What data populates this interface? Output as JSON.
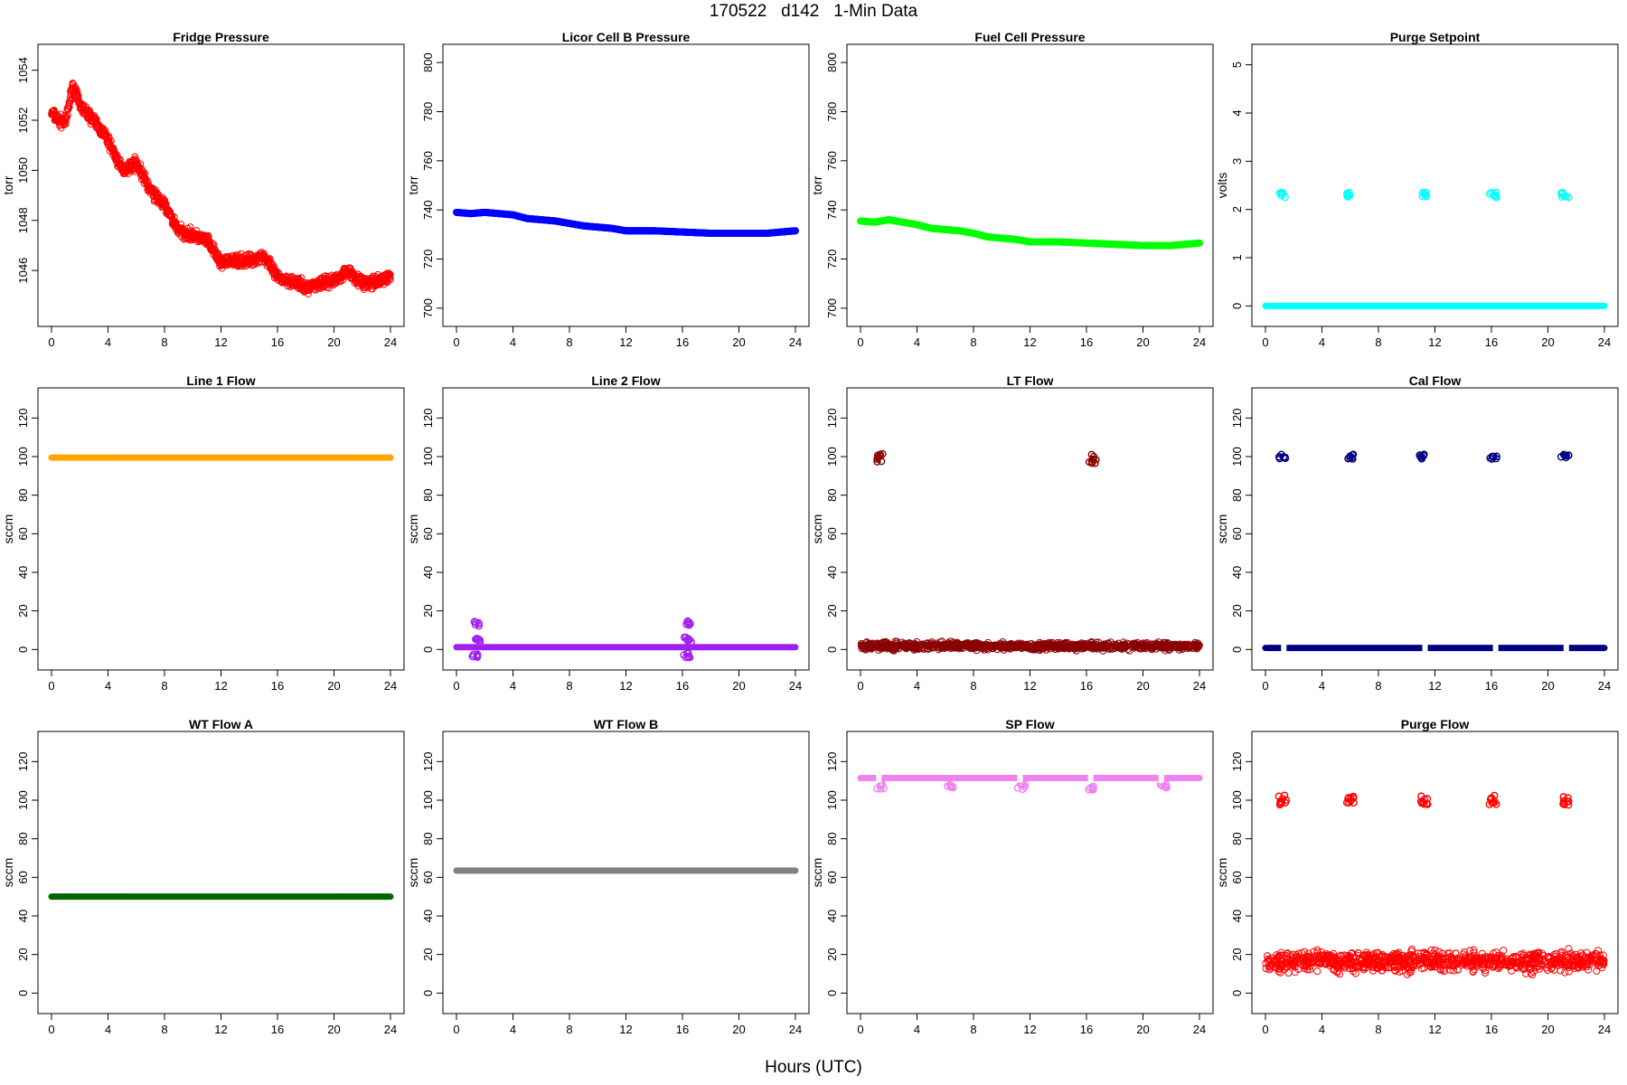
{
  "page": {
    "title": "170522   d142   1-Min Data",
    "xlabel": "Hours (UTC)"
  },
  "chart_data": [
    {
      "type": "scatter",
      "title": "Fridge Pressure",
      "ylabel": "torr",
      "xlim": [
        0,
        24
      ],
      "ylim": [
        1044.2,
        1054.6
      ],
      "xticks": [
        0,
        4,
        8,
        12,
        16,
        20,
        24
      ],
      "yticks": [
        1046,
        1048,
        1050,
        1052,
        1054
      ],
      "color": "#ff0000",
      "marker": "open-circle",
      "series": [
        {
          "x": [
            0,
            0.5,
            1,
            1.5,
            2,
            3,
            4,
            5,
            6,
            7,
            8,
            9,
            10,
            11,
            12,
            13,
            14,
            15,
            16,
            17,
            18,
            19,
            20,
            21,
            22,
            23,
            24
          ],
          "y": [
            1052.3,
            1052.0,
            1051.9,
            1053.4,
            1052.6,
            1052.0,
            1051.2,
            1050.0,
            1050.3,
            1049.2,
            1048.6,
            1047.6,
            1047.4,
            1047.2,
            1046.3,
            1046.4,
            1046.4,
            1046.6,
            1045.7,
            1045.6,
            1045.3,
            1045.5,
            1045.6,
            1046.0,
            1045.5,
            1045.5,
            1045.8
          ]
        }
      ]
    },
    {
      "type": "scatter",
      "title": "Licor Cell B Pressure",
      "ylabel": "torr",
      "xlim": [
        0,
        24
      ],
      "ylim": [
        697,
        803
      ],
      "xticks": [
        0,
        4,
        8,
        12,
        16,
        20,
        24
      ],
      "yticks": [
        700,
        720,
        740,
        760,
        780,
        800
      ],
      "color": "#0000ff",
      "marker": "dense",
      "series": [
        {
          "x": [
            0,
            1,
            2,
            3,
            4,
            5,
            6,
            7,
            8,
            9,
            10,
            11,
            12,
            14,
            16,
            18,
            20,
            22,
            24
          ],
          "y": [
            739,
            738.5,
            739,
            738.5,
            738,
            736.5,
            736,
            735.5,
            734.5,
            733.5,
            733,
            732.5,
            731.5,
            731.5,
            731,
            730.5,
            730.5,
            730.5,
            731.5
          ]
        }
      ]
    },
    {
      "type": "scatter",
      "title": "Fuel Cell Pressure",
      "ylabel": "torr",
      "xlim": [
        0,
        24
      ],
      "ylim": [
        697,
        803
      ],
      "xticks": [
        0,
        4,
        8,
        12,
        16,
        20,
        24
      ],
      "yticks": [
        700,
        720,
        740,
        760,
        780,
        800
      ],
      "color": "#00ff00",
      "marker": "dense",
      "series": [
        {
          "x": [
            0,
            1,
            2,
            3,
            4,
            5,
            6,
            7,
            8,
            9,
            10,
            11,
            12,
            14,
            16,
            18,
            20,
            22,
            24
          ],
          "y": [
            735.5,
            735,
            736,
            735,
            734,
            732.5,
            732,
            731.5,
            730.5,
            729,
            728.5,
            728,
            727,
            727,
            726.5,
            726,
            725.5,
            725.5,
            726.5
          ]
        }
      ]
    },
    {
      "type": "scatter",
      "title": "Purge Setpoint",
      "ylabel": "volts",
      "xlim": [
        0,
        24
      ],
      "ylim": [
        -0.2,
        5.2
      ],
      "xticks": [
        0,
        4,
        8,
        12,
        16,
        20,
        24
      ],
      "yticks": [
        0,
        1,
        2,
        3,
        4,
        5
      ],
      "color": "#00ffff",
      "marker": "dense",
      "series": [
        {
          "x": [
            0,
            24
          ],
          "y": [
            0,
            0
          ]
        },
        {
          "x": [
            1.2,
            6.0,
            11.2,
            16.1,
            21.2
          ],
          "y": [
            2.3,
            2.3,
            2.3,
            2.3,
            2.3
          ]
        }
      ]
    },
    {
      "type": "scatter",
      "title": "Line 1 Flow",
      "ylabel": "sccm",
      "xlim": [
        0,
        24
      ],
      "ylim": [
        -5,
        130
      ],
      "xticks": [
        0,
        4,
        8,
        12,
        16,
        20,
        24
      ],
      "yticks": [
        0,
        20,
        40,
        60,
        80,
        100,
        120
      ],
      "color": "#ffa500",
      "marker": "dense",
      "series": [
        {
          "x": [
            0,
            24
          ],
          "y": [
            99.5,
            99.5
          ]
        }
      ]
    },
    {
      "type": "scatter",
      "title": "Line 2 Flow",
      "ylabel": "sccm",
      "xlim": [
        0,
        24
      ],
      "ylim": [
        -5,
        130
      ],
      "xticks": [
        0,
        4,
        8,
        12,
        16,
        20,
        24
      ],
      "yticks": [
        0,
        20,
        40,
        60,
        80,
        100,
        120
      ],
      "color": "#a020f0",
      "marker": "dense",
      "series": [
        {
          "x": [
            0,
            24
          ],
          "y": [
            1.2,
            1.2
          ]
        },
        {
          "x": [
            1.5,
            1.5,
            1.4,
            16.4,
            16.4,
            16.3
          ],
          "y": [
            13.5,
            5,
            -3,
            13.5,
            5,
            -3
          ]
        }
      ]
    },
    {
      "type": "scatter",
      "title": "LT Flow",
      "ylabel": "sccm",
      "xlim": [
        0,
        24
      ],
      "ylim": [
        -5,
        130
      ],
      "xticks": [
        0,
        4,
        8,
        12,
        16,
        20,
        24
      ],
      "yticks": [
        0,
        20,
        40,
        60,
        80,
        100,
        120
      ],
      "color": "#8b0000",
      "marker": "open-circle",
      "series": [
        {
          "x": [
            0,
            24
          ],
          "y": [
            1.5,
            1.5
          ],
          "spread": [
            -1,
            4.5
          ]
        },
        {
          "x": [
            1.4,
            16.4
          ],
          "y": [
            99,
            99
          ]
        }
      ]
    },
    {
      "type": "scatter",
      "title": "Cal Flow",
      "ylabel": "sccm",
      "xlim": [
        0,
        24
      ],
      "ylim": [
        -5,
        130
      ],
      "xticks": [
        0,
        4,
        8,
        12,
        16,
        20,
        24
      ],
      "yticks": [
        0,
        20,
        40,
        60,
        80,
        100,
        120
      ],
      "color": "#000080",
      "marker": "dense",
      "series": [
        {
          "x": [
            0,
            24
          ],
          "y": [
            0.8,
            0.8
          ]
        },
        {
          "x": [
            1.2,
            6.0,
            11.2,
            16.1,
            21.2
          ],
          "y": [
            99.8,
            99.8,
            99.8,
            99.8,
            99.8
          ]
        }
      ]
    },
    {
      "type": "scatter",
      "title": "WT Flow A",
      "ylabel": "sccm",
      "xlim": [
        0,
        24
      ],
      "ylim": [
        -5,
        130
      ],
      "xticks": [
        0,
        4,
        8,
        12,
        16,
        20,
        24
      ],
      "yticks": [
        0,
        20,
        40,
        60,
        80,
        100,
        120
      ],
      "color": "#006400",
      "marker": "dense",
      "series": [
        {
          "x": [
            0,
            24
          ],
          "y": [
            50,
            50
          ]
        }
      ]
    },
    {
      "type": "scatter",
      "title": "WT Flow B",
      "ylabel": "sccm",
      "xlim": [
        0,
        24
      ],
      "ylim": [
        -5,
        130
      ],
      "xticks": [
        0,
        4,
        8,
        12,
        16,
        20,
        24
      ],
      "yticks": [
        0,
        20,
        40,
        60,
        80,
        100,
        120
      ],
      "color": "#808080",
      "marker": "dense",
      "series": [
        {
          "x": [
            0,
            24
          ],
          "y": [
            63.5,
            63.5
          ]
        }
      ]
    },
    {
      "type": "scatter",
      "title": "SP Flow",
      "ylabel": "sccm",
      "xlim": [
        0,
        24
      ],
      "ylim": [
        -5,
        130
      ],
      "xticks": [
        0,
        4,
        8,
        12,
        16,
        20,
        24
      ],
      "yticks": [
        0,
        20,
        40,
        60,
        80,
        100,
        120
      ],
      "color": "#ee82ee",
      "marker": "dense",
      "series": [
        {
          "x": [
            0,
            24
          ],
          "y": [
            111.5,
            111.5
          ]
        },
        {
          "x": [
            1.4,
            6.3,
            11.4,
            16.3,
            21.4
          ],
          "y": [
            107,
            107,
            107,
            106.5,
            107
          ]
        }
      ]
    },
    {
      "type": "scatter",
      "title": "Purge Flow",
      "ylabel": "sccm",
      "xlim": [
        0,
        24
      ],
      "ylim": [
        -5,
        130
      ],
      "xticks": [
        0,
        4,
        8,
        12,
        16,
        20,
        24
      ],
      "yticks": [
        0,
        20,
        40,
        60,
        80,
        100,
        120
      ],
      "color": "#ff0000",
      "marker": "open-circle",
      "series": [
        {
          "x": [
            0,
            24
          ],
          "y": [
            16,
            16
          ],
          "spread": [
            9,
            24
          ]
        },
        {
          "x": [
            1.2,
            6.0,
            11.2,
            16.1,
            21.2
          ],
          "y": [
            100,
            100,
            100,
            100,
            100
          ]
        }
      ]
    }
  ]
}
